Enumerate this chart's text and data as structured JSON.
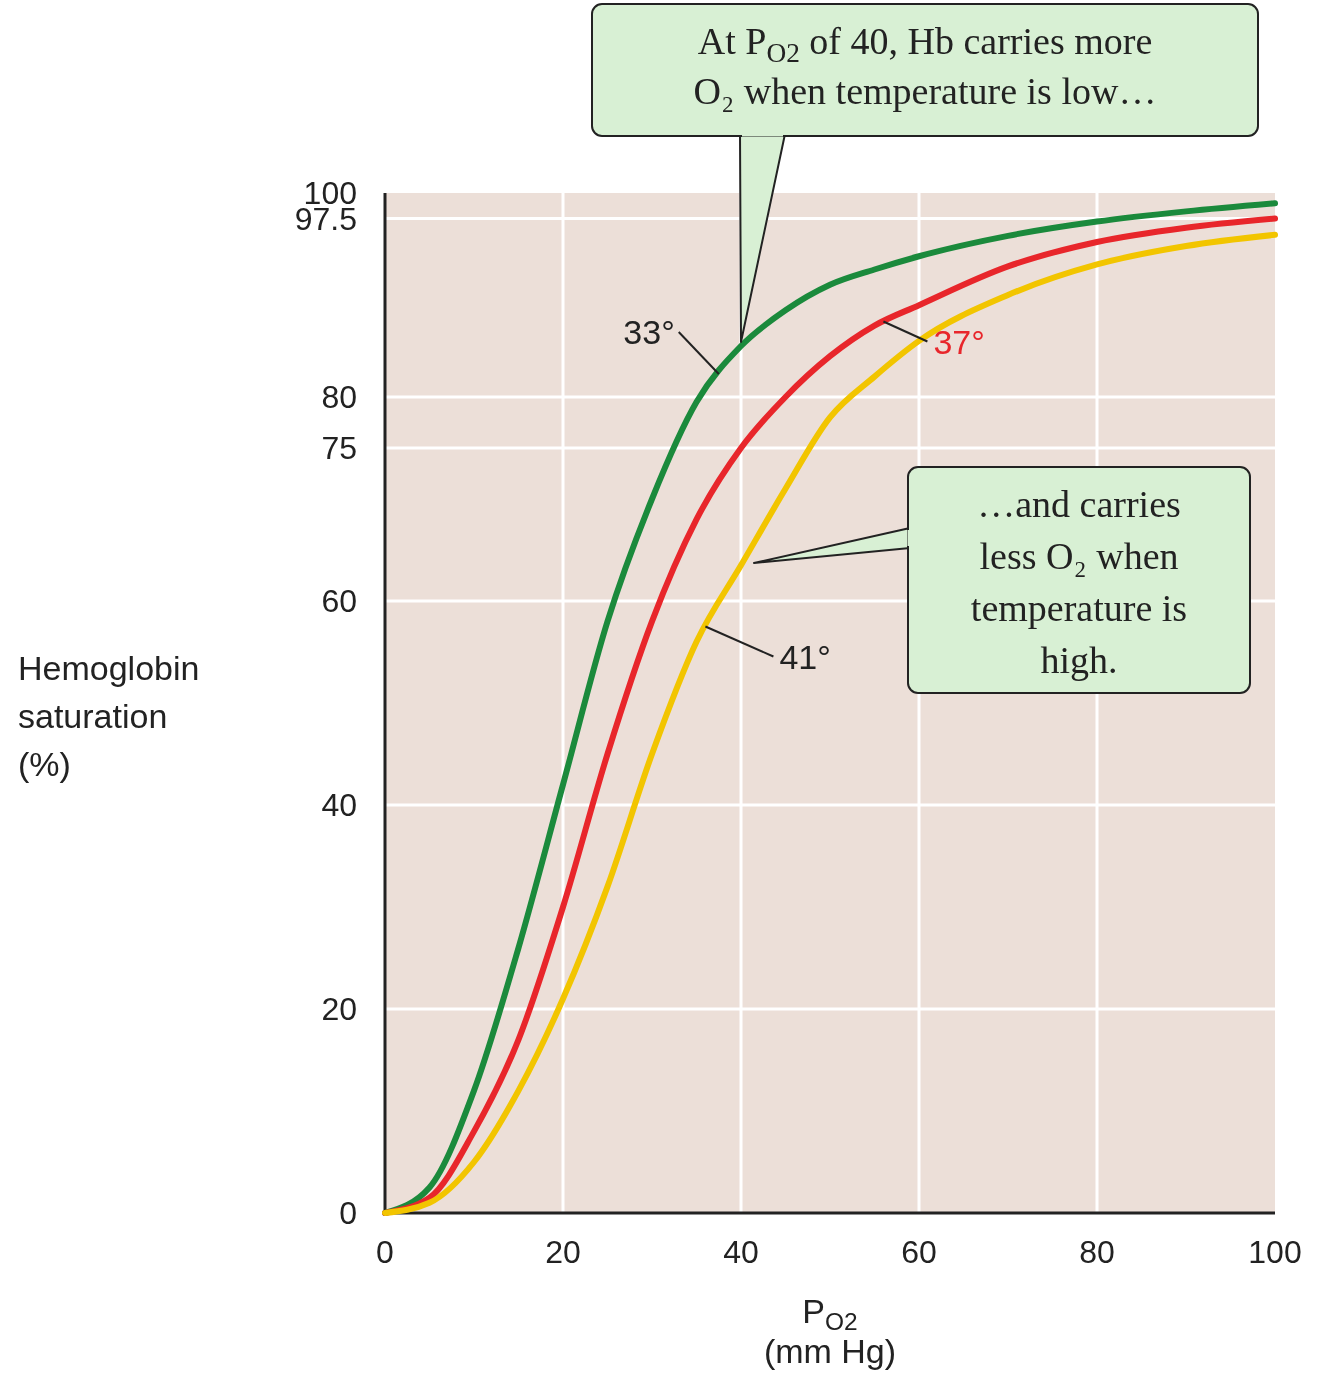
{
  "chart_data": {
    "type": "line",
    "xlabel": "P$_{O2}$\n(mm Hg)",
    "ylabel": "Hemoglobin\nsaturation\n(%)",
    "x": [
      0,
      5,
      10,
      15,
      20,
      25,
      30,
      35,
      40,
      45,
      50,
      55,
      60,
      70,
      80,
      90,
      100
    ],
    "series": [
      {
        "name": "33°",
        "color": "#1b8a3c",
        "values": [
          0,
          2.5,
          12,
          26,
          42,
          58,
          70,
          79.5,
          85,
          88.5,
          91,
          92.5,
          93.8,
          95.8,
          97.2,
          98.2,
          99
        ]
      },
      {
        "name": "37°",
        "color": "#e8262b",
        "values": [
          0,
          1.5,
          8,
          17,
          30,
          45,
          58,
          68,
          75,
          80,
          84,
          87,
          89,
          92.8,
          95.2,
          96.6,
          97.5
        ]
      },
      {
        "name": "41°",
        "color": "#f2c500",
        "values": [
          0,
          1,
          5,
          12,
          21,
          32,
          45,
          56,
          63.5,
          71,
          78,
          82,
          85.5,
          90,
          93,
          94.8,
          95.9
        ]
      }
    ],
    "xlim": [
      0,
      100
    ],
    "xticks": [
      0,
      20,
      40,
      60,
      80,
      100
    ],
    "ylim": [
      0,
      100
    ],
    "yticks": [
      0,
      20,
      40,
      60,
      75,
      80,
      97.5,
      100
    ],
    "grid": true,
    "annotations": [
      {
        "text": "At P$_{O2}$ of 40, Hb carries more\nO₂ when temperature is low…",
        "x": 40,
        "y": 85
      },
      "…and carries\nless O₂ when\ntemperature is\nhigh."
    ]
  }
}
